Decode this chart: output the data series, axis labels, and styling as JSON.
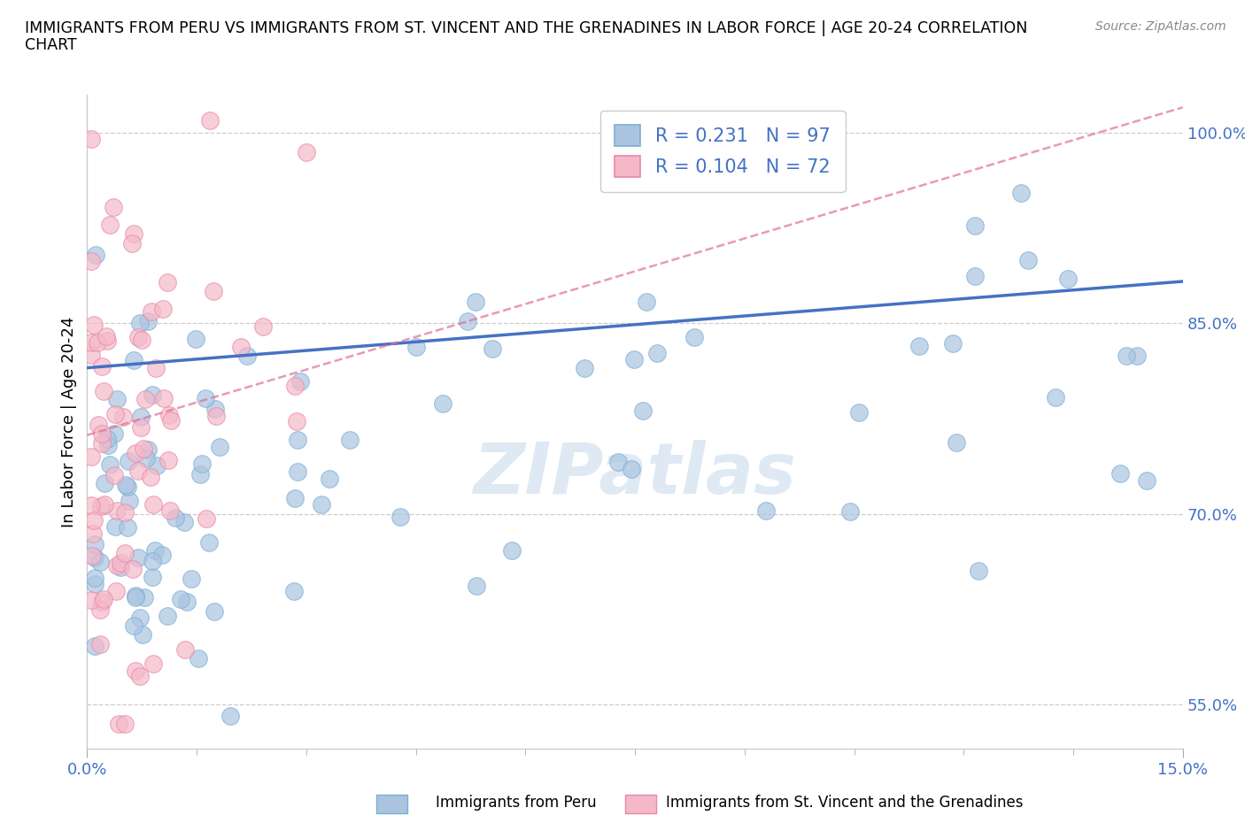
{
  "title_line1": "IMMIGRANTS FROM PERU VS IMMIGRANTS FROM ST. VINCENT AND THE GRENADINES IN LABOR FORCE | AGE 20-24 CORRELATION",
  "title_line2": "CHART",
  "source": "Source: ZipAtlas.com",
  "ylabel": "In Labor Force | Age 20-24",
  "xlim": [
    0.0,
    0.15
  ],
  "ylim": [
    0.515,
    1.03
  ],
  "yticks": [
    0.55,
    0.7,
    0.85,
    1.0
  ],
  "ytick_labels": [
    "55.0%",
    "70.0%",
    "85.0%",
    "100.0%"
  ],
  "xtick_labels_show": [
    "0.0%",
    "15.0%"
  ],
  "peru_color": "#aac4e0",
  "peru_edge": "#7aafd4",
  "svg_color": "#f5b8c8",
  "svg_edge": "#e888a8",
  "peru_R": 0.231,
  "peru_N": 97,
  "svg_R": 0.104,
  "svg_N": 72,
  "trend_blue": "#4472c4",
  "trend_pink": "#e07090",
  "watermark": "ZIPatlas",
  "legend_label_peru": "Immigrants from Peru",
  "legend_label_svg": "Immigrants from St. Vincent and the Grenadines",
  "blue_line_x0": 0.0,
  "blue_line_y0": 0.815,
  "blue_line_x1": 0.15,
  "blue_line_y1": 0.883,
  "pink_line_x0": 0.0,
  "pink_line_y0": 0.762,
  "pink_line_x1": 0.15,
  "pink_line_y1": 1.02
}
